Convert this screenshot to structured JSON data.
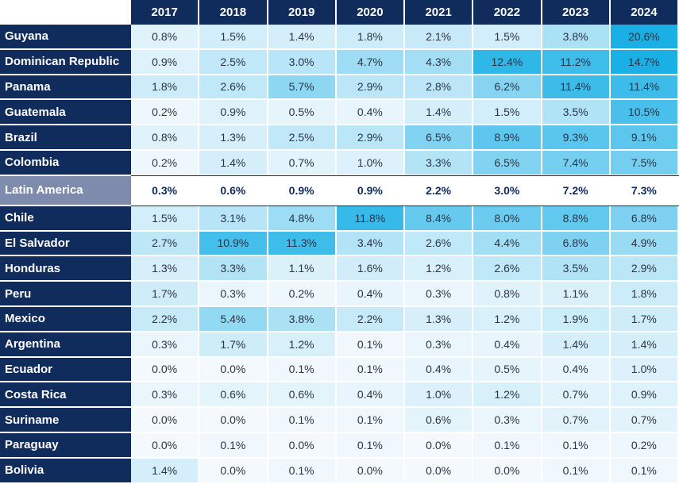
{
  "chart_data": {
    "type": "heatmap",
    "value_suffix": "%",
    "columns": [
      "2017",
      "2018",
      "2019",
      "2020",
      "2021",
      "2022",
      "2023",
      "2024"
    ],
    "highlight_row": "Latin America",
    "colors": {
      "header_bg": "#0f2c5c",
      "highlight_bg": "#7f8bad",
      "scale_low": "#f3f9fd",
      "scale_high": "#1ab0e6"
    },
    "rows": [
      {
        "label": "Guyana",
        "values": [
          0.8,
          1.5,
          1.4,
          1.8,
          2.1,
          1.5,
          3.8,
          20.6
        ]
      },
      {
        "label": "Dominican Republic",
        "values": [
          0.9,
          2.5,
          3.0,
          4.7,
          4.3,
          12.4,
          11.2,
          14.7
        ]
      },
      {
        "label": "Panama",
        "values": [
          1.8,
          2.6,
          5.7,
          2.9,
          2.8,
          6.2,
          11.4,
          11.4
        ]
      },
      {
        "label": "Guatemala",
        "values": [
          0.2,
          0.9,
          0.5,
          0.4,
          1.4,
          1.5,
          3.5,
          10.5
        ]
      },
      {
        "label": "Brazil",
        "values": [
          0.8,
          1.3,
          2.5,
          2.9,
          6.5,
          8.9,
          9.3,
          9.1
        ]
      },
      {
        "label": "Colombia",
        "values": [
          0.2,
          1.4,
          0.7,
          1.0,
          3.3,
          6.5,
          7.4,
          7.5
        ]
      },
      {
        "label": "Latin America",
        "values": [
          0.3,
          0.6,
          0.9,
          0.9,
          2.2,
          3.0,
          7.2,
          7.3
        ]
      },
      {
        "label": "Chile",
        "values": [
          1.5,
          3.1,
          4.8,
          11.8,
          8.4,
          8.0,
          8.8,
          6.8
        ]
      },
      {
        "label": "El Salvador",
        "values": [
          2.7,
          10.9,
          11.3,
          3.4,
          2.6,
          4.4,
          6.8,
          4.9
        ]
      },
      {
        "label": "Honduras",
        "values": [
          1.3,
          3.3,
          1.1,
          1.6,
          1.2,
          2.6,
          3.5,
          2.9
        ]
      },
      {
        "label": "Peru",
        "values": [
          1.7,
          0.3,
          0.2,
          0.4,
          0.3,
          0.8,
          1.1,
          1.8
        ]
      },
      {
        "label": "Mexico",
        "values": [
          2.2,
          5.4,
          3.8,
          2.2,
          1.3,
          1.2,
          1.9,
          1.7
        ]
      },
      {
        "label": "Argentina",
        "values": [
          0.3,
          1.7,
          1.2,
          0.1,
          0.3,
          0.4,
          1.4,
          1.4
        ]
      },
      {
        "label": "Ecuador",
        "values": [
          0.0,
          0.0,
          0.1,
          0.1,
          0.4,
          0.5,
          0.4,
          1.0
        ]
      },
      {
        "label": "Costa Rica",
        "values": [
          0.3,
          0.6,
          0.6,
          0.4,
          1.0,
          1.2,
          0.7,
          0.9
        ]
      },
      {
        "label": "Suriname",
        "values": [
          0.0,
          0.0,
          0.1,
          0.1,
          0.6,
          0.3,
          0.7,
          0.7
        ]
      },
      {
        "label": "Paraguay",
        "values": [
          0.0,
          0.1,
          0.0,
          0.1,
          0.0,
          0.1,
          0.1,
          0.2
        ]
      },
      {
        "label": "Bolivia",
        "values": [
          1.4,
          0.0,
          0.1,
          0.0,
          0.0,
          0.0,
          0.1,
          0.1
        ]
      }
    ]
  }
}
